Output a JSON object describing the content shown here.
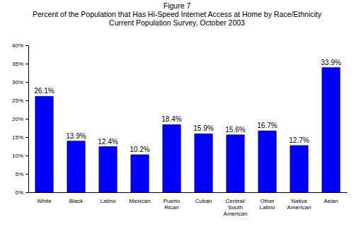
{
  "chart_data": {
    "type": "bar",
    "title": "Figure 7",
    "subtitle": [
      "Percent of the Population that Has Hi-Speed Internet Access at Home by Race/Ethnicity",
      "Current Population Survey, October 2003"
    ],
    "categories": [
      "White",
      "Black",
      "Latino",
      "Mexican",
      "Puerto Rican",
      "Cuban",
      "Central/ South American",
      "Other Latino",
      "Native American",
      "Asian"
    ],
    "values": [
      26.1,
      13.9,
      12.4,
      10.2,
      18.4,
      15.9,
      15.6,
      16.7,
      12.7,
      33.9
    ],
    "value_labels": [
      "26.1%",
      "13.9%",
      "12.4%",
      "10.2%",
      "18.4%",
      "15.9%",
      "15.6%",
      "16.7%",
      "12.7%",
      "33.9%"
    ],
    "data_labels": true,
    "color": "#0000ff",
    "grid": false,
    "ylim": [
      0,
      40
    ],
    "yticks": [
      {
        "value": 0,
        "label": "0%"
      },
      {
        "value": 5,
        "label": "5%"
      },
      {
        "value": 10,
        "label": "10%"
      },
      {
        "value": 15,
        "label": "15%"
      },
      {
        "value": 20,
        "label": "20%"
      },
      {
        "value": 25,
        "label": "25%"
      },
      {
        "value": 30,
        "label": "30%"
      },
      {
        "value": 35,
        "label": "35%"
      },
      {
        "value": 40,
        "label": "40%"
      }
    ]
  }
}
